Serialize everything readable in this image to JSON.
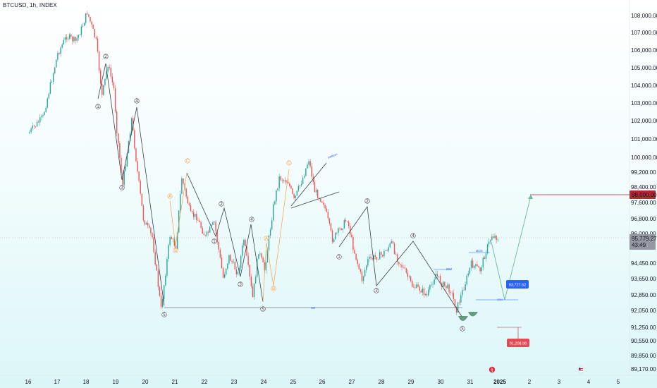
{
  "header": {
    "symbol": "BTCUSD, 1h, INDEX"
  },
  "chart_data": {
    "type": "candlestick",
    "symbol": "BTCUSD",
    "interval": "1h",
    "source": "INDEX",
    "x_axis": {
      "tick_labels": [
        "16",
        "17",
        "18",
        "19",
        "20",
        "21",
        "22",
        "23",
        "24",
        "25",
        "26",
        "27",
        "28",
        "29",
        "30",
        "31",
        "2025",
        "2",
        "3",
        "4",
        "5"
      ],
      "bold_label": "2025"
    },
    "y_axis": {
      "tick_labels": [
        "108,000.00",
        "107,000.00",
        "106,000.00",
        "105,000.00",
        "104,000.00",
        "103,000.00",
        "102,000.00",
        "101,000.00",
        "100,000.00",
        "99,200.00",
        "98,400.00",
        "97,600.00",
        "96,800.00",
        "96,000.00",
        "94,450.00",
        "93,650.00",
        "92,850.00",
        "92,050.00",
        "91,250.00",
        "90,550.00",
        "89,850.00",
        "89,170.00"
      ],
      "current_price": "95,779.27",
      "countdown": "43:49",
      "target_label": "98,000.00"
    },
    "price_series": [
      [
        "16",
        101300
      ],
      [
        "16.5",
        102200
      ],
      [
        "17",
        105800
      ],
      [
        "17.3",
        106800
      ],
      [
        "17.6",
        106500
      ],
      [
        "17.8",
        107200
      ],
      [
        "18",
        108200
      ],
      [
        "18.3",
        106500
      ],
      [
        "18.5",
        103400
      ],
      [
        "18.7",
        105200
      ],
      [
        "18.9",
        103800
      ],
      [
        "19",
        101500
      ],
      [
        "19.2",
        98500
      ],
      [
        "19.5",
        102100
      ],
      [
        "19.7",
        99200
      ],
      [
        "19.9",
        96800
      ],
      [
        "20.2",
        95800
      ],
      [
        "20.5",
        92100
      ],
      [
        "20.8",
        95900
      ],
      [
        "21",
        95300
      ],
      [
        "21.2",
        98900
      ],
      [
        "21.5",
        97000
      ],
      [
        "21.7",
        96900
      ],
      [
        "22",
        95800
      ],
      [
        "22.3",
        96600
      ],
      [
        "22.6",
        93700
      ],
      [
        "22.8",
        94800
      ],
      [
        "23.1",
        93900
      ],
      [
        "23.3",
        95700
      ],
      [
        "23.6",
        92700
      ],
      [
        "23.8",
        95100
      ],
      [
        "24",
        94100
      ],
      [
        "24.3",
        97400
      ],
      [
        "24.5",
        98900
      ],
      [
        "24.8",
        98700
      ],
      [
        "25",
        97700
      ],
      [
        "25.3",
        98900
      ],
      [
        "25.5",
        99900
      ],
      [
        "25.7",
        98200
      ],
      [
        "26",
        97600
      ],
      [
        "26.3",
        95700
      ],
      [
        "26.5",
        96100
      ],
      [
        "26.8",
        96800
      ],
      [
        "27",
        95300
      ],
      [
        "27.3",
        93600
      ],
      [
        "27.5",
        94600
      ],
      [
        "27.8",
        94800
      ],
      [
        "28",
        94900
      ],
      [
        "28.3",
        95500
      ],
      [
        "28.5",
        94700
      ],
      [
        "28.8",
        93900
      ],
      [
        "29",
        93300
      ],
      [
        "29.3",
        93100
      ],
      [
        "29.5",
        92800
      ],
      [
        "29.8",
        93900
      ],
      [
        "30",
        93400
      ],
      [
        "30.3",
        93100
      ],
      [
        "30.5",
        92100
      ],
      [
        "30.7",
        93000
      ],
      [
        "31",
        94400
      ],
      [
        "31.3",
        94100
      ],
      [
        "31.5",
        95100
      ],
      [
        "31.7",
        95900
      ],
      [
        "31.9",
        95779
      ]
    ],
    "annotations": {
      "wave_labels": [
        "①",
        "②",
        "③",
        "④",
        "⑤",
        "A",
        "B",
        "C",
        "SS",
        "BOS",
        "IDM",
        "pattern"
      ],
      "price_labels": [
        "93,727.52",
        "91,208.98"
      ],
      "target": "98,000.00"
    },
    "colors": {
      "up": "#26a69a",
      "down": "#ef5350",
      "target": "#b22833",
      "current": "#b2b5be",
      "projection": "#6fb896",
      "wave_line": "#3b3f4a",
      "abc": "#f0a24a",
      "blue_label": "#2962ff"
    }
  }
}
